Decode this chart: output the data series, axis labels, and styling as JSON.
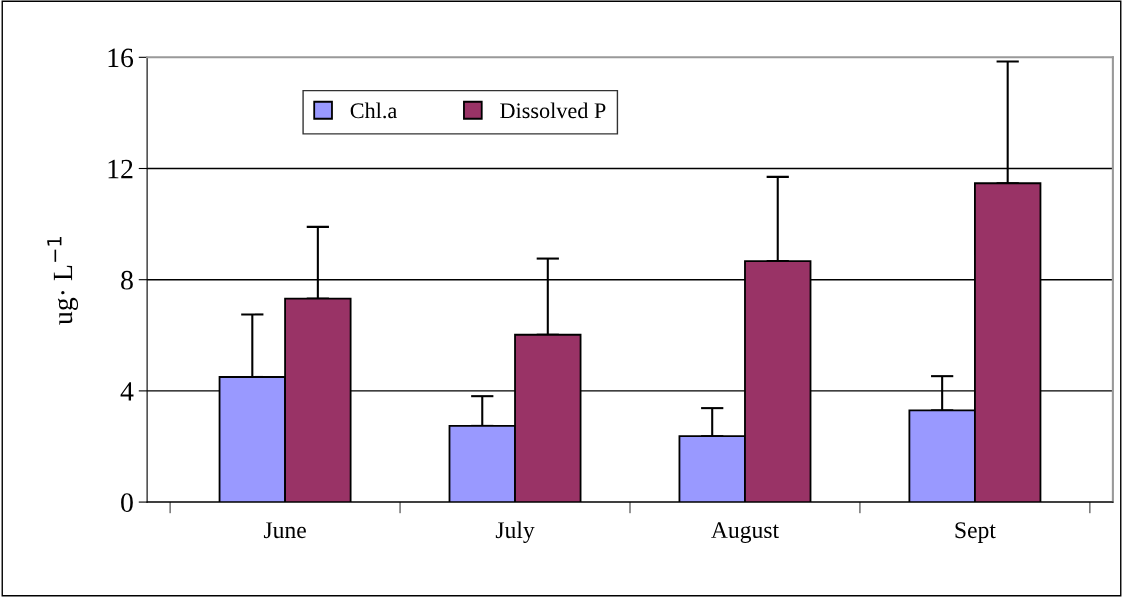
{
  "chart_data": {
    "type": "bar",
    "ylabel": "ug· L$^{−1}$",
    "categories": [
      "June",
      "July",
      "August",
      "Sept"
    ],
    "series": [
      {
        "name": "Chl.a",
        "color": "#9999ff",
        "values": [
          4.5,
          2.74,
          2.37,
          3.3
        ],
        "errors": [
          [
            4.5,
            6.75
          ],
          [
            2.74,
            3.81
          ],
          [
            2.37,
            3.38
          ],
          [
            3.3,
            4.53
          ]
        ]
      },
      {
        "name": "Dissolved P",
        "color": "#993366",
        "values": [
          7.32,
          6.02,
          8.67,
          11.47
        ],
        "errors": [
          [
            7.32,
            9.9
          ],
          [
            6.02,
            8.76
          ],
          [
            8.67,
            11.7
          ],
          [
            11.47,
            15.85
          ]
        ]
      }
    ],
    "ylim": [
      0,
      16
    ],
    "yticks": [
      0,
      4,
      8,
      12,
      16
    ],
    "grid": "y",
    "legend": "top left"
  }
}
